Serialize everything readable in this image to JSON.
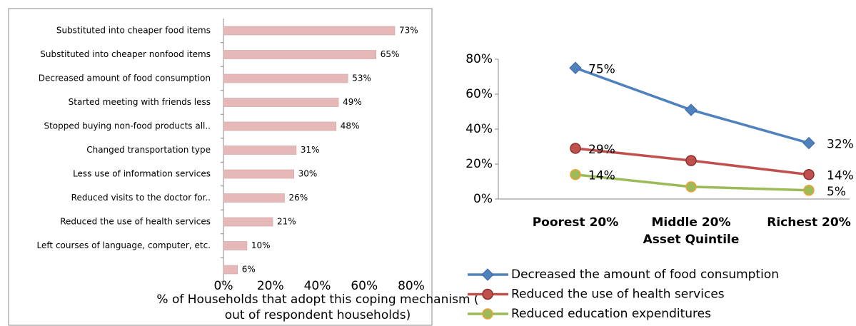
{
  "chart_data": [
    {
      "type": "bar",
      "orientation": "horizontal",
      "categories": [
        "Substituted into cheaper food items",
        "Substituted into cheaper nonfood items",
        "Decreased amount of food consumption",
        "Started meeting with friends less",
        "Stopped buying  non-food products all..",
        "Changed transportation type",
        "Less use of information services",
        "Reduced visits to the doctor for..",
        "Reduced the use of health services",
        "Left courses of  language, computer, etc.",
        null
      ],
      "values": [
        73,
        65,
        53,
        49,
        48,
        31,
        30,
        26,
        21,
        10,
        6
      ],
      "value_labels": [
        "73%",
        "65%",
        "53%",
        "49%",
        "48%",
        "31%",
        "30%",
        "26%",
        "21%",
        "10%",
        "6%"
      ],
      "color": "#e6b9b8",
      "xlim": [
        0,
        80
      ],
      "xticks": [
        {
          "value": 0,
          "label": "0%"
        },
        {
          "value": 20,
          "label": "20%"
        },
        {
          "value": 40,
          "label": "40%"
        },
        {
          "value": 60,
          "label": "60%"
        },
        {
          "value": 80,
          "label": "80%"
        }
      ],
      "x_label": [
        "% of Households that adopt this coping mechanism (",
        "out of respondent households)"
      ]
    },
    {
      "type": "line",
      "categories": [
        "Poorest 20%",
        "Middle 20%",
        "Richest 20%"
      ],
      "x_label": "Asset Quintile",
      "ylim": [
        0,
        80
      ],
      "yticks": [
        {
          "value": 0,
          "label": "0%"
        },
        {
          "value": 20,
          "label": "20%"
        },
        {
          "value": 40,
          "label": "40%"
        },
        {
          "value": 60,
          "label": "60%"
        },
        {
          "value": 80,
          "label": "80%"
        }
      ],
      "legend": "bottom",
      "series": [
        {
          "name": "Decreased the amount of food consumption",
          "color": "#4f81bd",
          "marker": "diamond",
          "values": [
            75,
            51,
            32
          ],
          "value_labels": [
            "75%",
            null,
            "32%"
          ]
        },
        {
          "name": "Reduced the use of health services",
          "color": "#c0504d",
          "marker": "circle",
          "values": [
            29,
            22,
            14
          ],
          "value_labels": [
            "29%",
            null,
            "14%"
          ]
        },
        {
          "name": "Reduced education expenditures",
          "color": "#9bbb59",
          "marker": "circle",
          "values": [
            14,
            7,
            5
          ],
          "value_labels": [
            "14%",
            null,
            "5%"
          ]
        }
      ]
    }
  ]
}
